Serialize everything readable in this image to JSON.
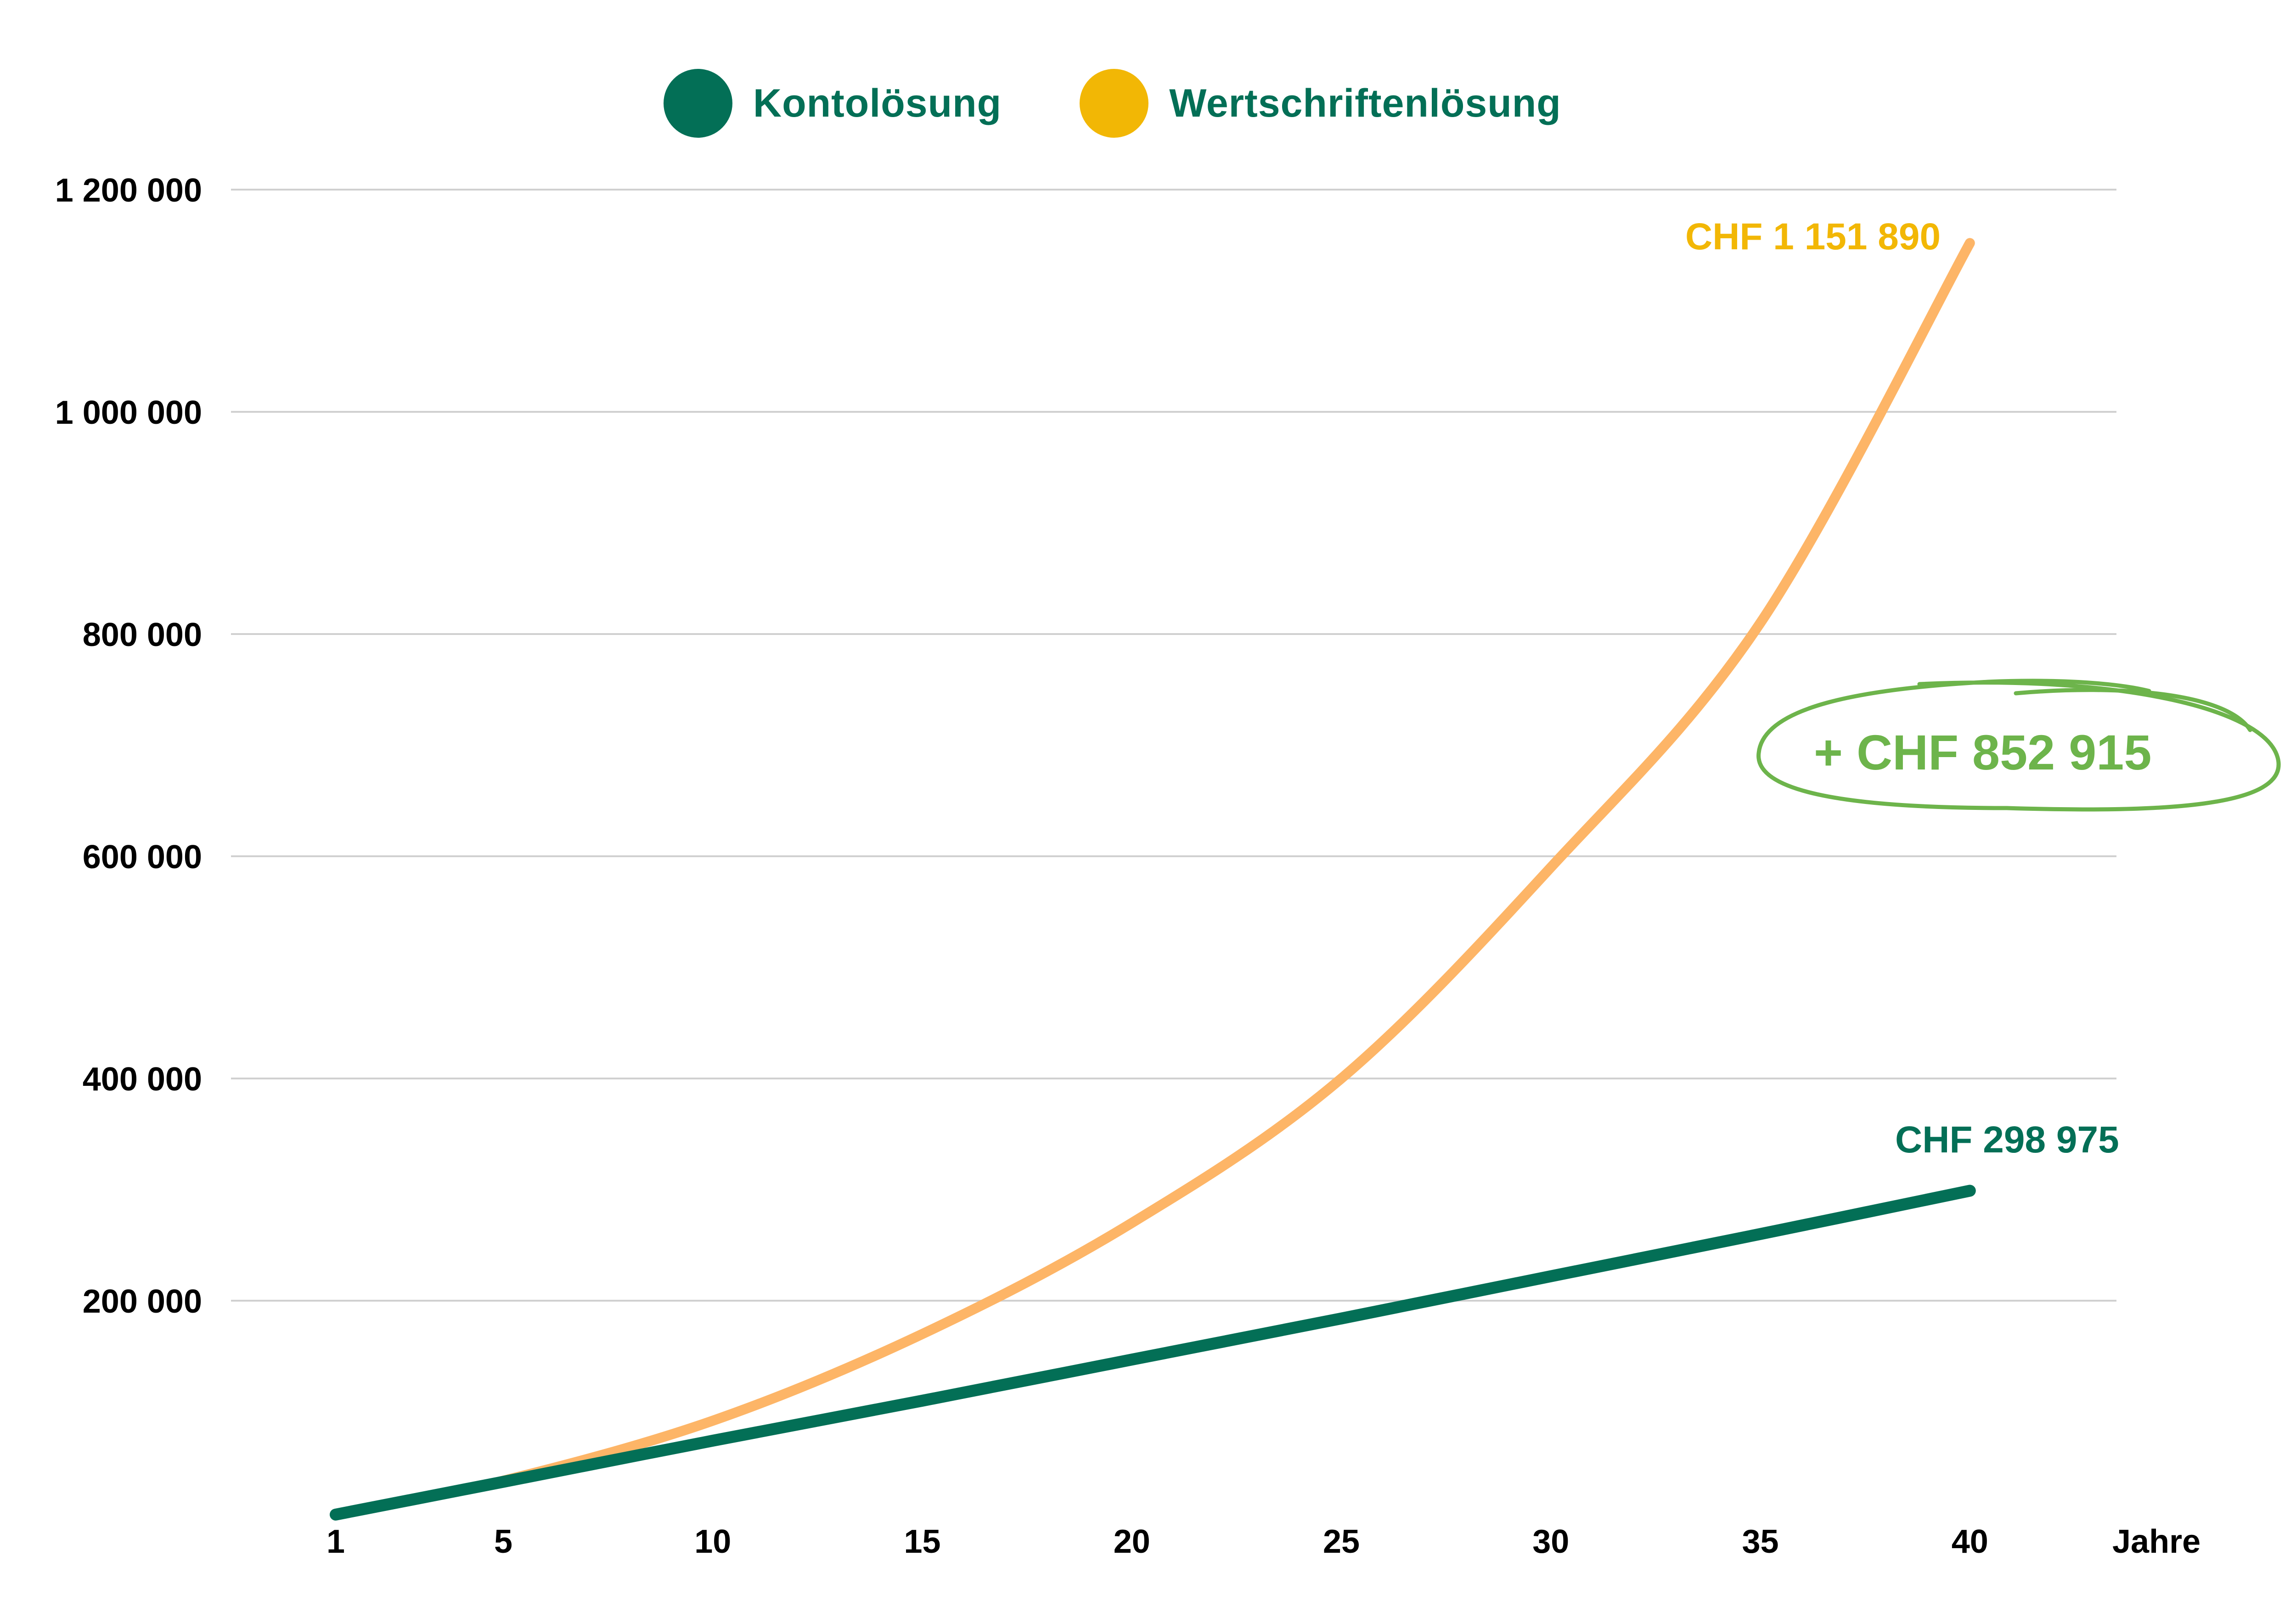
{
  "legend": {
    "items": [
      {
        "label": "Kontolösung",
        "color": "#036F56"
      },
      {
        "label": "Wertschriftenlösung",
        "color": "#F2B705"
      }
    ]
  },
  "colors": {
    "konto_line": "#036F56",
    "wertschriften_line": "#FDB567",
    "wertschriften_label": "#F2B705",
    "diff_annotation": "#6DB44B",
    "gridline": "#D0D0D0",
    "axis_text": "#000000"
  },
  "annotations": {
    "wertschriften_end": "CHF 1 151 890",
    "konto_end": "CHF 298 975",
    "difference": "+ CHF 852 915"
  },
  "axes": {
    "x_unit": "Jahre",
    "x_ticks": [
      "1",
      "5",
      "10",
      "15",
      "20",
      "25",
      "30",
      "35",
      "40"
    ],
    "y_ticks": [
      "200 000",
      "400 000",
      "600 000",
      "800 000",
      "1 000 000",
      "1 200 000"
    ]
  },
  "chart_data": {
    "type": "line",
    "title": "",
    "xlabel": "Jahre",
    "ylabel": "",
    "x": [
      1,
      5,
      10,
      15,
      20,
      25,
      30,
      35,
      40
    ],
    "series": [
      {
        "name": "Kontolösung",
        "color": "#036F56",
        "values": [
          7500,
          37000,
          74000,
          110000,
          147000,
          184000,
          222000,
          260000,
          298975
        ]
      },
      {
        "name": "Wertschriftenlösung",
        "color": "#FDB567",
        "values": [
          7500,
          38000,
          92000,
          170000,
          270000,
          400000,
          590000,
          810000,
          1151890
        ]
      }
    ],
    "annotations": [
      {
        "text": "CHF 1 151 890",
        "x": 40,
        "y": 1151890,
        "series": "Wertschriftenlösung"
      },
      {
        "text": "CHF 298 975",
        "x": 40,
        "y": 298975,
        "series": "Kontolösung"
      },
      {
        "text": "+ CHF 852 915",
        "note": "difference at year 40, circled"
      }
    ],
    "xlim": [
      1,
      40
    ],
    "ylim": [
      0,
      1200000
    ],
    "y_ticks": [
      200000,
      400000,
      600000,
      800000,
      1000000,
      1200000
    ],
    "x_ticks": [
      1,
      5,
      10,
      15,
      20,
      25,
      30,
      35,
      40
    ],
    "grid": "horizontal",
    "legend_position": "top"
  }
}
